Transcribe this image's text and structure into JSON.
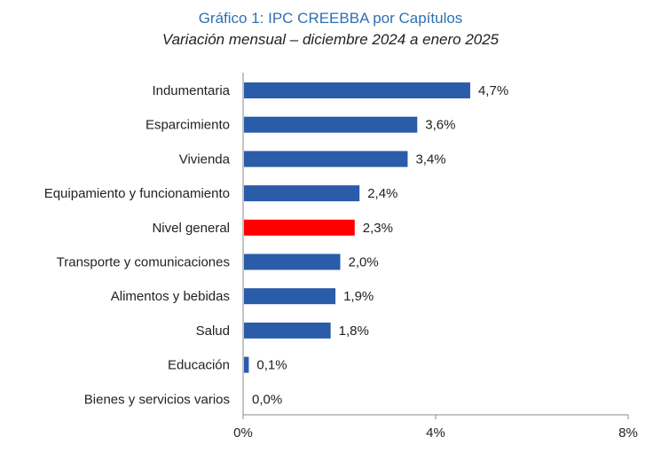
{
  "title": "Gráfico 1: IPC CREEBBA por Capítulos",
  "subtitle": "Variación mensual – diciembre 2024 a enero 2025",
  "colors": {
    "bar": "#2a5caa",
    "highlight": "#ff0000",
    "title": "#2f6fb3"
  },
  "chart_data": {
    "type": "bar",
    "orientation": "horizontal",
    "categories": [
      "Indumentaria",
      "Esparcimiento",
      "Vivienda",
      "Equipamiento y funcionamiento",
      "Nivel general",
      "Transporte y comunicaciones",
      "Alimentos y bebidas",
      "Salud",
      "Educación",
      "Bienes y servicios varios"
    ],
    "values": [
      4.7,
      3.6,
      3.4,
      2.4,
      2.3,
      2.0,
      1.9,
      1.8,
      0.1,
      0.0
    ],
    "value_labels": [
      "4,7%",
      "3,6%",
      "3,4%",
      "2,4%",
      "2,3%",
      "2,0%",
      "1,9%",
      "1,8%",
      "0,1%",
      "0,0%"
    ],
    "highlight_category": "Nivel general",
    "xlim": [
      0,
      8
    ],
    "x_ticks": [
      0,
      4,
      8
    ],
    "x_tick_labels": [
      "0%",
      "4%",
      "8%"
    ],
    "grid": false,
    "xlabel": "",
    "ylabel": ""
  }
}
